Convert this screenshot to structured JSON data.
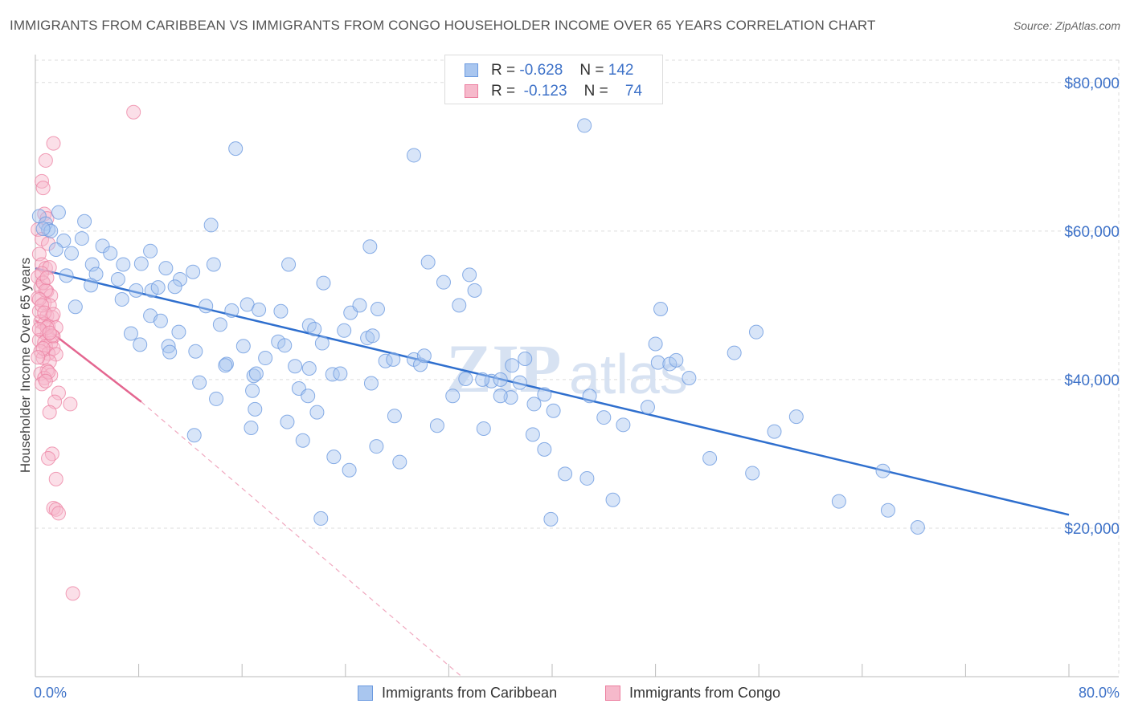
{
  "title": "IMMIGRANTS FROM CARIBBEAN VS IMMIGRANTS FROM CONGO HOUSEHOLDER INCOME OVER 65 YEARS CORRELATION CHART",
  "source": "Source: ZipAtlas.com",
  "watermark": {
    "zip": "ZIP",
    "atlas": "atlas"
  },
  "legend": {
    "r_label": "R =",
    "n_label": "N =",
    "rows": [
      {
        "r": "-0.628",
        "n": "142",
        "color": "#a9c6ef"
      },
      {
        "r": "-0.123",
        "n": "74",
        "color": "#f6b9cb"
      }
    ]
  },
  "colors": {
    "caribbean_fill": "#a9c6ef",
    "caribbean_stroke": "#6b9ae0",
    "caribbean_line": "#2f6fce",
    "congo_fill": "#f6b9cb",
    "congo_stroke": "#ec7fa0",
    "congo_line": "#e46690",
    "tick_label": "#3e72c8"
  },
  "chart_data": {
    "type": "scatter",
    "title": "IMMIGRANTS FROM CARIBBEAN VS IMMIGRANTS FROM CONGO HOUSEHOLDER INCOME OVER 65 YEARS CORRELATION CHART",
    "xlabel": "",
    "ylabel": "Householder Income Over 65 years",
    "xlim": [
      0,
      80
    ],
    "ylim": [
      0,
      83000
    ],
    "x_tick_labels": [
      "0.0%",
      "80.0%"
    ],
    "y_ticks": [
      20000,
      40000,
      60000,
      80000
    ],
    "y_tick_labels": [
      "$20,000",
      "$40,000",
      "$60,000",
      "$80,000"
    ],
    "grid": true,
    "legend_position": "top-center",
    "series": [
      {
        "name": "Immigrants from Caribbean",
        "r": -0.628,
        "n": 142,
        "trend": {
          "x": [
            0,
            80
          ],
          "y": [
            55000,
            21800
          ]
        },
        "points": [
          [
            0.3,
            62000
          ],
          [
            0.8,
            61000
          ],
          [
            1.0,
            60200
          ],
          [
            1.2,
            60000
          ],
          [
            0.6,
            60300
          ],
          [
            1.8,
            62500
          ],
          [
            3.8,
            61300
          ],
          [
            5.2,
            58000
          ],
          [
            5.8,
            57000
          ],
          [
            3.6,
            59000
          ],
          [
            2.2,
            58700
          ],
          [
            1.6,
            57500
          ],
          [
            2.8,
            57000
          ],
          [
            4.4,
            55500
          ],
          [
            6.8,
            55500
          ],
          [
            8.2,
            55600
          ],
          [
            10.1,
            55000
          ],
          [
            11.2,
            53500
          ],
          [
            12.2,
            54500
          ],
          [
            13.8,
            55500
          ],
          [
            2.4,
            54000
          ],
          [
            4.7,
            54200
          ],
          [
            6.4,
            53500
          ],
          [
            7.8,
            52000
          ],
          [
            9.0,
            52000
          ],
          [
            9.5,
            52400
          ],
          [
            10.8,
            52500
          ],
          [
            4.3,
            52700
          ],
          [
            6.7,
            50800
          ],
          [
            3.1,
            49800
          ],
          [
            8.9,
            48600
          ],
          [
            9.7,
            47900
          ],
          [
            11.1,
            46400
          ],
          [
            14.3,
            47400
          ],
          [
            7.4,
            46200
          ],
          [
            8.1,
            44700
          ],
          [
            10.3,
            44500
          ],
          [
            12.4,
            43800
          ],
          [
            10.4,
            43700
          ],
          [
            13.2,
            49900
          ],
          [
            15.2,
            49300
          ],
          [
            16.4,
            50100
          ],
          [
            17.3,
            49400
          ],
          [
            19.0,
            49200
          ],
          [
            21.2,
            47300
          ],
          [
            21.6,
            46800
          ],
          [
            22.3,
            53000
          ],
          [
            24.4,
            49000
          ],
          [
            25.1,
            50000
          ],
          [
            26.5,
            49500
          ],
          [
            23.9,
            46600
          ],
          [
            25.7,
            45600
          ],
          [
            26.1,
            45900
          ],
          [
            16.1,
            44500
          ],
          [
            18.8,
            45100
          ],
          [
            19.3,
            44600
          ],
          [
            20.1,
            41800
          ],
          [
            21.2,
            41500
          ],
          [
            22.2,
            44900
          ],
          [
            17.8,
            42900
          ],
          [
            14.8,
            42100
          ],
          [
            16.9,
            40500
          ],
          [
            17.1,
            40800
          ],
          [
            12.7,
            39600
          ],
          [
            14.0,
            37400
          ],
          [
            16.8,
            38500
          ],
          [
            20.4,
            38800
          ],
          [
            21.1,
            37800
          ],
          [
            23.0,
            40700
          ],
          [
            23.6,
            40800
          ],
          [
            26.0,
            39500
          ],
          [
            27.1,
            42500
          ],
          [
            27.7,
            42700
          ],
          [
            29.3,
            42700
          ],
          [
            29.8,
            42000
          ],
          [
            30.1,
            43200
          ],
          [
            33.3,
            40100
          ],
          [
            35.3,
            39800
          ],
          [
            36.0,
            40000
          ],
          [
            37.5,
            39600
          ],
          [
            36.8,
            37600
          ],
          [
            36.0,
            37800
          ],
          [
            32.3,
            37800
          ],
          [
            36.9,
            41900
          ],
          [
            37.9,
            42800
          ],
          [
            38.6,
            36700
          ],
          [
            39.4,
            38000
          ],
          [
            40.1,
            35800
          ],
          [
            42.9,
            37800
          ],
          [
            44.0,
            34900
          ],
          [
            45.5,
            33900
          ],
          [
            47.4,
            36300
          ],
          [
            48.0,
            44800
          ],
          [
            48.2,
            42300
          ],
          [
            48.4,
            49500
          ],
          [
            49.1,
            42100
          ],
          [
            49.6,
            42600
          ],
          [
            50.6,
            40200
          ],
          [
            54.1,
            43600
          ],
          [
            55.8,
            46400
          ],
          [
            14.7,
            41900
          ],
          [
            17.0,
            36000
          ],
          [
            19.5,
            34300
          ],
          [
            21.8,
            35600
          ],
          [
            27.8,
            35100
          ],
          [
            31.1,
            33800
          ],
          [
            34.7,
            33400
          ],
          [
            38.5,
            32600
          ],
          [
            39.4,
            30600
          ],
          [
            23.1,
            29600
          ],
          [
            26.4,
            31000
          ],
          [
            28.2,
            28900
          ],
          [
            16.7,
            33500
          ],
          [
            12.3,
            32500
          ],
          [
            20.7,
            31800
          ],
          [
            24.3,
            27800
          ],
          [
            41.0,
            27300
          ],
          [
            42.7,
            26700
          ],
          [
            44.7,
            23800
          ],
          [
            39.9,
            21200
          ],
          [
            22.1,
            21300
          ],
          [
            52.2,
            29400
          ],
          [
            55.5,
            27400
          ],
          [
            57.2,
            33000
          ],
          [
            58.9,
            35000
          ],
          [
            62.2,
            23600
          ],
          [
            65.6,
            27700
          ],
          [
            66.0,
            22400
          ],
          [
            68.3,
            20100
          ],
          [
            42.5,
            74200
          ],
          [
            29.3,
            70200
          ],
          [
            15.5,
            71100
          ],
          [
            13.6,
            60800
          ],
          [
            8.9,
            57300
          ],
          [
            19.6,
            55500
          ],
          [
            30.4,
            55800
          ],
          [
            31.6,
            53100
          ],
          [
            33.6,
            54100
          ],
          [
            34.0,
            52000
          ],
          [
            32.8,
            50000
          ],
          [
            25.9,
            57900
          ],
          [
            34.6,
            40000
          ]
        ]
      },
      {
        "name": "Immigrants from Congo",
        "r": -0.123,
        "n": 74,
        "trend": {
          "x": [
            0,
            8.2
          ],
          "y": [
            48000,
            37000
          ]
        },
        "trend_extension": {
          "x": [
            8.2,
            33.0
          ],
          "y": [
            37000,
            0
          ]
        },
        "points": [
          [
            7.6,
            76000
          ],
          [
            1.4,
            71800
          ],
          [
            0.8,
            69500
          ],
          [
            0.5,
            66700
          ],
          [
            0.6,
            65800
          ],
          [
            0.7,
            62300
          ],
          [
            0.9,
            61700
          ],
          [
            0.2,
            60200
          ],
          [
            0.5,
            58900
          ],
          [
            1.0,
            58300
          ],
          [
            0.3,
            56900
          ],
          [
            0.5,
            55500
          ],
          [
            0.8,
            55000
          ],
          [
            1.1,
            55100
          ],
          [
            0.2,
            53800
          ],
          [
            0.6,
            53100
          ],
          [
            0.4,
            52400
          ],
          [
            0.9,
            51900
          ],
          [
            0.2,
            51000
          ],
          [
            1.2,
            51300
          ],
          [
            0.7,
            50300
          ],
          [
            1.1,
            50000
          ],
          [
            0.3,
            49200
          ],
          [
            0.9,
            48600
          ],
          [
            1.3,
            48400
          ],
          [
            0.4,
            47800
          ],
          [
            0.7,
            47500
          ],
          [
            1.0,
            47200
          ],
          [
            1.6,
            47000
          ],
          [
            0.5,
            46500
          ],
          [
            0.9,
            46000
          ],
          [
            1.4,
            45800
          ],
          [
            0.3,
            45300
          ],
          [
            0.7,
            45000
          ],
          [
            1.2,
            44900
          ],
          [
            0.8,
            44500
          ],
          [
            1.4,
            44200
          ],
          [
            0.4,
            43800
          ],
          [
            1.0,
            43500
          ],
          [
            1.6,
            43400
          ],
          [
            0.6,
            42900
          ],
          [
            1.1,
            42400
          ],
          [
            0.9,
            41200
          ],
          [
            0.4,
            40800
          ],
          [
            1.2,
            40600
          ],
          [
            0.7,
            40200
          ],
          [
            0.5,
            39400
          ],
          [
            1.8,
            38200
          ],
          [
            1.5,
            37000
          ],
          [
            2.7,
            36700
          ],
          [
            1.1,
            35600
          ],
          [
            1.3,
            30000
          ],
          [
            1.0,
            29400
          ],
          [
            1.6,
            26600
          ],
          [
            1.4,
            22700
          ],
          [
            1.6,
            22500
          ],
          [
            1.8,
            22000
          ],
          [
            2.9,
            11200
          ],
          [
            0.6,
            53000
          ],
          [
            0.8,
            52000
          ],
          [
            0.3,
            50800
          ],
          [
            0.5,
            50000
          ],
          [
            0.7,
            49000
          ],
          [
            0.9,
            47000
          ],
          [
            0.3,
            46800
          ],
          [
            1.3,
            45900
          ],
          [
            0.6,
            44200
          ],
          [
            0.2,
            43000
          ],
          [
            1.0,
            41000
          ],
          [
            0.8,
            39800
          ],
          [
            1.4,
            48800
          ],
          [
            0.5,
            54300
          ],
          [
            0.9,
            53700
          ],
          [
            1.1,
            46300
          ]
        ]
      }
    ]
  }
}
